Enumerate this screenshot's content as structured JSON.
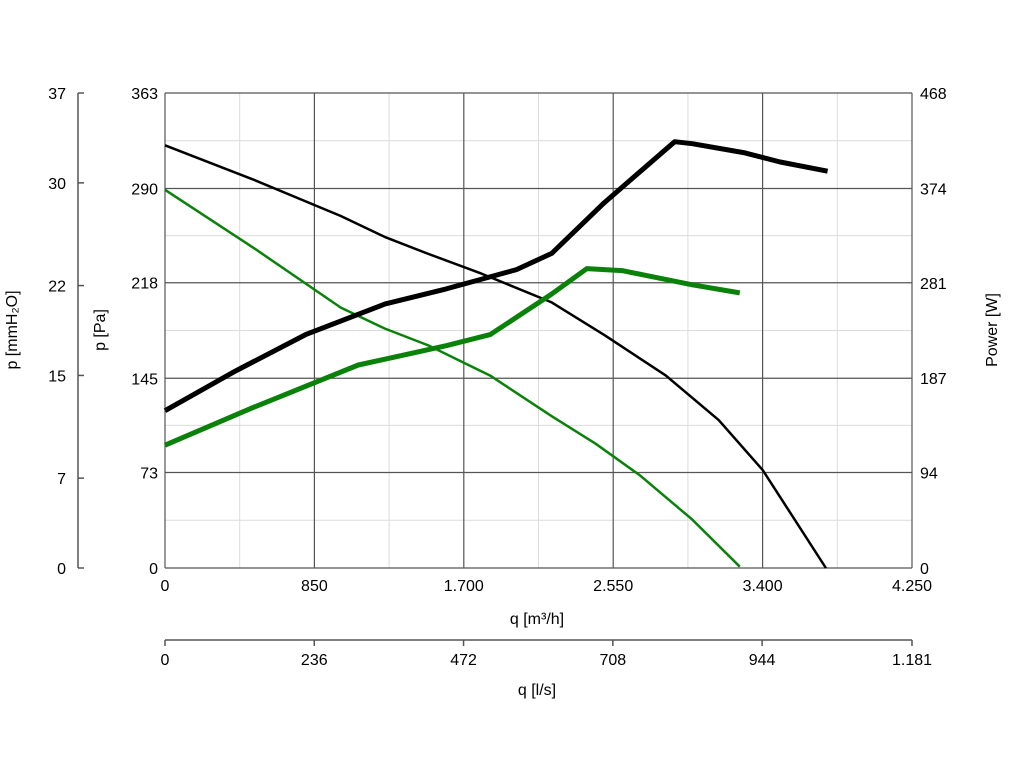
{
  "chart_data": {
    "type": "line",
    "x_axis": {
      "label": "q [m³/h]",
      "range": [
        0,
        4250
      ],
      "ticks": [
        0,
        850,
        1700,
        2550,
        3400,
        4250
      ],
      "tick_labels": [
        "0",
        "850",
        "1.700",
        "2.550",
        "3.400",
        "4.250"
      ]
    },
    "x2_axis": {
      "label": "q [l/s]",
      "range": [
        0,
        1181
      ],
      "ticks": [
        0,
        236,
        472,
        708,
        944,
        1181
      ],
      "tick_labels": [
        "0",
        "236",
        "472",
        "708",
        "944",
        "1.181"
      ]
    },
    "y_axis": {
      "label": "p [Pa]",
      "range": [
        0,
        363
      ],
      "ticks": [
        0,
        73,
        145,
        218,
        290,
        363
      ],
      "tick_labels": [
        "0",
        "73",
        "145",
        "218",
        "290",
        "363"
      ]
    },
    "y_outer_axis": {
      "label": "p [mmH₂O]",
      "range": [
        0,
        37
      ],
      "ticks": [
        0,
        7,
        15,
        22,
        30,
        37
      ],
      "tick_labels": [
        "0",
        "7",
        "15",
        "22",
        "30",
        "37"
      ]
    },
    "y_right_axis": {
      "label": "Power [W]",
      "range": [
        0,
        468
      ],
      "ticks": [
        0,
        94,
        187,
        281,
        374,
        468
      ],
      "tick_labels": [
        "0",
        "94",
        "187",
        "281",
        "374",
        "468"
      ]
    },
    "grid": true,
    "series": [
      {
        "axis": "pressure",
        "color": "#000000",
        "weight": "thin",
        "x": [
          0,
          500,
          1000,
          1250,
          1500,
          1800,
          2200,
          2500,
          2850,
          3150,
          3400,
          3760
        ],
        "y": [
          323,
          297,
          269,
          253,
          240,
          225,
          203,
          178,
          147,
          113,
          75,
          0
        ]
      },
      {
        "axis": "pressure",
        "color": "#0a820a",
        "weight": "thin",
        "x": [
          0,
          500,
          1000,
          1250,
          1500,
          1850,
          2200,
          2450,
          2700,
          3000,
          3270
        ],
        "y": [
          289,
          245,
          199,
          183,
          170,
          147,
          116,
          95,
          71,
          37,
          1
        ]
      },
      {
        "axis": "power",
        "color": "#000000",
        "weight": "thick",
        "x": [
          0,
          400,
          800,
          1250,
          1600,
          2000,
          2200,
          2500,
          2900,
          3000,
          3300,
          3500,
          3770
        ],
        "y": [
          155,
          194,
          230,
          260,
          275,
          294,
          310,
          360,
          420,
          418,
          409,
          400,
          391
        ]
      },
      {
        "axis": "power",
        "color": "#0a820a",
        "weight": "thick",
        "x": [
          0,
          500,
          1100,
          1600,
          1850,
          2200,
          2400,
          2600,
          2800,
          3000,
          3270
        ],
        "y": [
          121,
          158,
          200,
          219,
          230,
          270,
          295,
          293,
          286,
          279,
          271
        ]
      }
    ]
  }
}
